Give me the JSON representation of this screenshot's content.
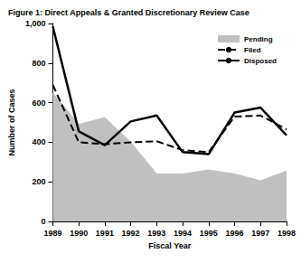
{
  "chart_data": {
    "type": "line",
    "title": "Figure 1: Direct Appeals & Granted Discretionary Review Case",
    "x_label": "Fiscal Year",
    "y_label": "Number of Cases",
    "categories": [
      "1989",
      "1990",
      "1991",
      "1992",
      "1993",
      "1994",
      "1995",
      "1996",
      "1997",
      "1998"
    ],
    "series": [
      {
        "name": "Pending",
        "type": "area",
        "color": "#c0c0c0",
        "values": [
          650,
          490,
          525,
          400,
          240,
          240,
          260,
          240,
          205,
          255
        ]
      },
      {
        "name": "Filed",
        "type": "line",
        "line_style": "dashed",
        "color": "#000000",
        "values": [
          690,
          400,
          390,
          400,
          405,
          360,
          350,
          530,
          535,
          465
        ]
      },
      {
        "name": "Disposed",
        "type": "line",
        "line_style": "solid",
        "color": "#000000",
        "values": [
          985,
          455,
          385,
          505,
          535,
          350,
          340,
          550,
          575,
          435
        ]
      }
    ],
    "ylim": [
      0,
      1000
    ],
    "yticks": [
      0,
      200,
      400,
      600,
      800,
      {
        "value": 1000,
        "label": "1,000"
      }
    ],
    "grid": false,
    "legend": "upper right"
  }
}
